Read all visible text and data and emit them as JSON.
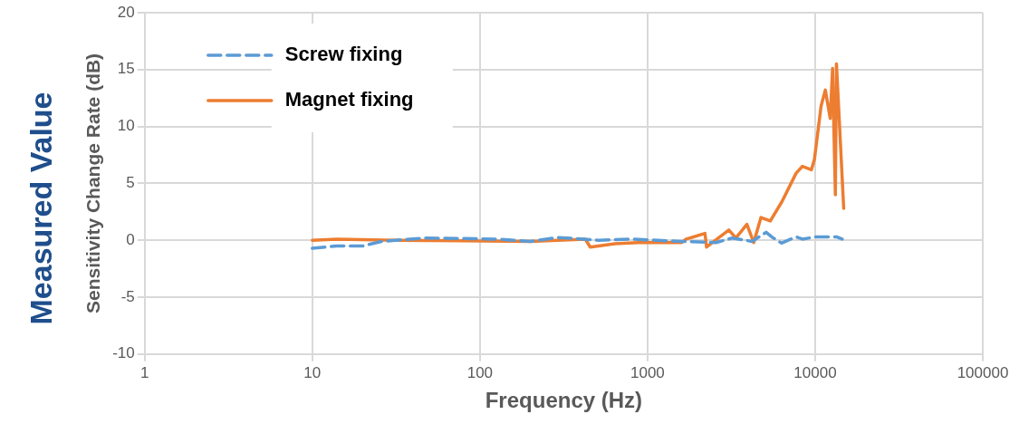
{
  "chart_data": {
    "type": "line",
    "xlabel": "Frequency (Hz)",
    "ylabel": "Sensitivity Change Rate (dB)",
    "annotations": [
      "Measured Value"
    ],
    "log": "x",
    "xlim": [
      1,
      100000
    ],
    "xticks": [
      1,
      10,
      100,
      1000,
      10000,
      100000
    ],
    "ylim": [
      -10,
      20
    ],
    "yticks": [
      -10,
      -5,
      0,
      5,
      10,
      15,
      20
    ],
    "grid": true,
    "legend": "top left",
    "marker": "none",
    "series": [
      {
        "name": "Screw fixing",
        "color": "#5b9bd5",
        "line_style": "dashed",
        "x": [
          10,
          14,
          20,
          26,
          47,
          127,
          200,
          290,
          510,
          800,
          1600,
          2560,
          3200,
          4200,
          5100,
          5500,
          6300,
          7700,
          8400,
          10100,
          11500,
          13400,
          14500
        ],
        "values": [
          -0.7,
          -0.5,
          -0.5,
          -0.1,
          0.2,
          0.1,
          -0.1,
          0.25,
          0,
          0.1,
          -0.1,
          -0.2,
          0.2,
          -0.1,
          0.7,
          0.3,
          -0.25,
          0.3,
          0.1,
          0.3,
          0.3,
          0.3,
          0.1
        ]
      },
      {
        "name": "Magnet fixing",
        "color": "#ed7d31",
        "line_style": "solid",
        "x": [
          10,
          14,
          32,
          200,
          425,
          455,
          640,
          883,
          1600,
          1700,
          2200,
          2250,
          3055,
          3365,
          3915,
          4300,
          4750,
          5400,
          6340,
          7700,
          8400,
          9500,
          9900,
          10850,
          11500,
          12300,
          12700,
          13200,
          13400,
          14800
        ],
        "values": [
          0,
          0.1,
          0,
          -0.1,
          0.1,
          -0.6,
          -0.3,
          -0.2,
          -0.2,
          0.1,
          0.6,
          -0.6,
          0.9,
          0.2,
          1.4,
          -0.2,
          2.0,
          1.7,
          3.4,
          5.9,
          6.5,
          6.2,
          7.1,
          11.8,
          13.2,
          10.7,
          15.1,
          4.0,
          15.5,
          2.8
        ]
      }
    ]
  }
}
